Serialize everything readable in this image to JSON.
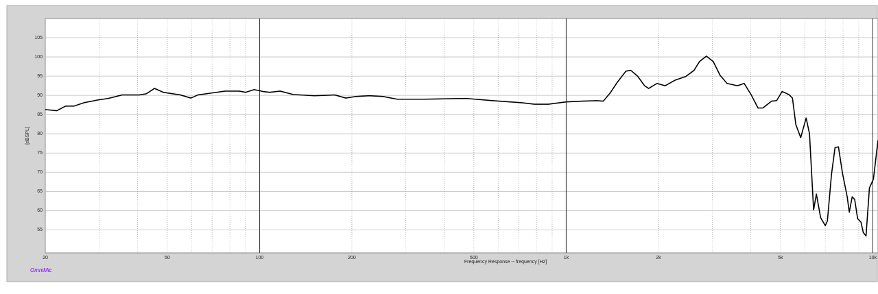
{
  "chart_data": {
    "type": "line",
    "x_label": "Frequency Response -- frequency [Hz]",
    "y_label": "[dBSPL]",
    "brand": "OmniMic",
    "log_x": true,
    "grid": true,
    "xlim": [
      20,
      10400
    ],
    "ylim": [
      49,
      110
    ],
    "xticks": [
      20,
      50,
      100,
      200,
      500,
      {
        "value": 1000,
        "label": "1k"
      },
      {
        "value": 2000,
        "label": "2k"
      },
      {
        "value": 5000,
        "label": "5k"
      },
      {
        "value": 10000,
        "label": "10k"
      }
    ],
    "x_minor_grid": [
      30,
      40,
      60,
      70,
      80,
      90,
      300,
      400,
      600,
      700,
      800,
      900,
      3000,
      4000,
      6000,
      7000,
      8000,
      9000
    ],
    "yticks": [
      55,
      60,
      65,
      70,
      75,
      80,
      85,
      90,
      95,
      100,
      105
    ],
    "series": [
      {
        "color": "#000000",
        "x": [
          20,
          21.8,
          23.3,
          24.8,
          26.8,
          29.7,
          32.1,
          35.6,
          40.5,
          42.7,
          45.4,
          48.5,
          55.2,
          59.7,
          62.9,
          69.7,
          77.3,
          85.7,
          90.2,
          96,
          102.6,
          108,
          116.7,
          129,
          151,
          176,
          191,
          206,
          228,
          253,
          281,
          345,
          471,
          578,
          711,
          788,
          875,
          1000,
          1132,
          1256,
          1322,
          1391,
          1465,
          1566,
          1625,
          1710,
          1802,
          1858,
          1977,
          2102,
          2274,
          2455,
          2612,
          2722,
          2867,
          3017,
          3178,
          3347,
          3617,
          3806,
          4009,
          4224,
          4377,
          4680,
          4855,
          5061,
          5326,
          5470,
          5611,
          5820,
          6063,
          6218,
          6412,
          6548,
          6757,
          6999,
          7112,
          7333,
          7532,
          7727,
          7963,
          8252,
          8382,
          8569,
          8730,
          8925,
          9153,
          9311,
          9506,
          9751,
          10050,
          10400
        ],
        "values": [
          86.3,
          86.0,
          87.2,
          87.2,
          88.1,
          88.8,
          89.2,
          90.1,
          90.1,
          90.4,
          91.8,
          90.8,
          90.1,
          89.3,
          90.1,
          90.6,
          91.1,
          91.1,
          90.8,
          91.5,
          91.0,
          90.8,
          91.1,
          90.2,
          89.9,
          90.1,
          89.3,
          89.7,
          89.9,
          89.7,
          89.0,
          89.0,
          89.2,
          88.6,
          88.1,
          87.7,
          87.7,
          88.3,
          88.5,
          88.6,
          88.5,
          90.6,
          93.3,
          96.3,
          96.5,
          95.0,
          92.5,
          91.8,
          93.1,
          92.5,
          94.0,
          94.9,
          96.5,
          98.8,
          100.2,
          98.8,
          95.2,
          93.1,
          92.5,
          93.1,
          90.2,
          86.7,
          86.7,
          88.5,
          88.6,
          91.0,
          90.2,
          89.3,
          82.4,
          79.0,
          84.1,
          80.0,
          60.2,
          64.3,
          58.2,
          56.1,
          57.3,
          69.4,
          76.4,
          76.6,
          69.8,
          63.6,
          59.6,
          63.6,
          62.9,
          57.9,
          57.0,
          54.3,
          53.4,
          65.9,
          68.2,
          78.3
        ]
      }
    ]
  }
}
